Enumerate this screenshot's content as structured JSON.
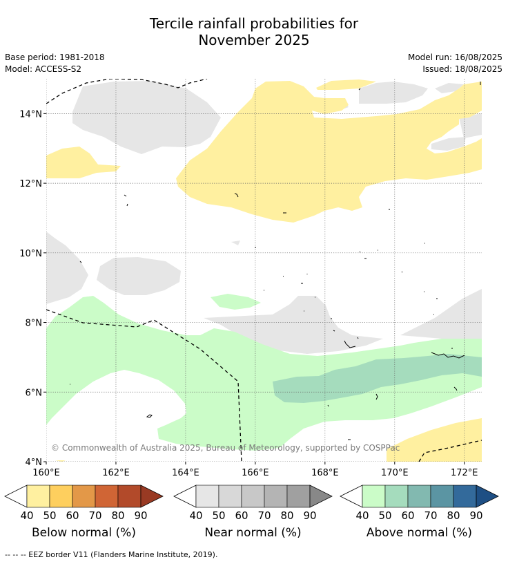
{
  "title_line1": "Tercile rainfall probabilities for",
  "title_line2": "November 2025",
  "base_period": "Base period: 1981-2018",
  "model": "Model: ACCESS-S2",
  "model_run": "Model run: 16/08/2025",
  "issued": "Issued: 18/08/2025",
  "copyright": "© Commonwealth of Australia 2025, Bureau of Meteorology, supported by COSPPac",
  "footer_note": "--  --  -- EEZ border V11 (Flanders Marine Institute, 2019).",
  "map": {
    "lon_range": [
      160,
      172.5
    ],
    "lat_range": [
      4,
      15
    ],
    "lon_ticks": [
      {
        "value": 160,
        "label": "160°E"
      },
      {
        "value": 162,
        "label": "162°E"
      },
      {
        "value": 164,
        "label": "164°E"
      },
      {
        "value": 166,
        "label": "166°E"
      },
      {
        "value": 168,
        "label": "168°E"
      },
      {
        "value": 170,
        "label": "170°E"
      },
      {
        "value": 172,
        "label": "172°E"
      }
    ],
    "lat_ticks": [
      {
        "value": 4,
        "label": "4°N"
      },
      {
        "value": 6,
        "label": "6°N"
      },
      {
        "value": 8,
        "label": "8°N"
      },
      {
        "value": 10,
        "label": "10°N"
      },
      {
        "value": 12,
        "label": "12°N"
      },
      {
        "value": 14,
        "label": "14°N"
      }
    ],
    "gridlines": true
  },
  "colorbars": [
    {
      "name": "below-normal",
      "label": "Below normal (%)",
      "colors": [
        "#fff0a0",
        "#fecf5e",
        "#e39848",
        "#d06535",
        "#b24a2a",
        "#993a23"
      ],
      "ticks": [
        "40",
        "50",
        "60",
        "70",
        "80",
        "90"
      ]
    },
    {
      "name": "near-normal",
      "label": "Near normal (%)",
      "colors": [
        "#e6e6e6",
        "#d8d8d8",
        "#c8c8c8",
        "#b4b4b4",
        "#a0a0a0",
        "#888888"
      ],
      "ticks": [
        "40",
        "50",
        "60",
        "70",
        "80",
        "90"
      ]
    },
    {
      "name": "above-normal",
      "label": "Above normal (%)",
      "colors": [
        "#cbfcc8",
        "#a5dcbd",
        "#82b9b0",
        "#5b95a3",
        "#336a9b",
        "#1e4f84"
      ],
      "ticks": [
        "40",
        "50",
        "60",
        "70",
        "80",
        "90"
      ]
    }
  ]
}
